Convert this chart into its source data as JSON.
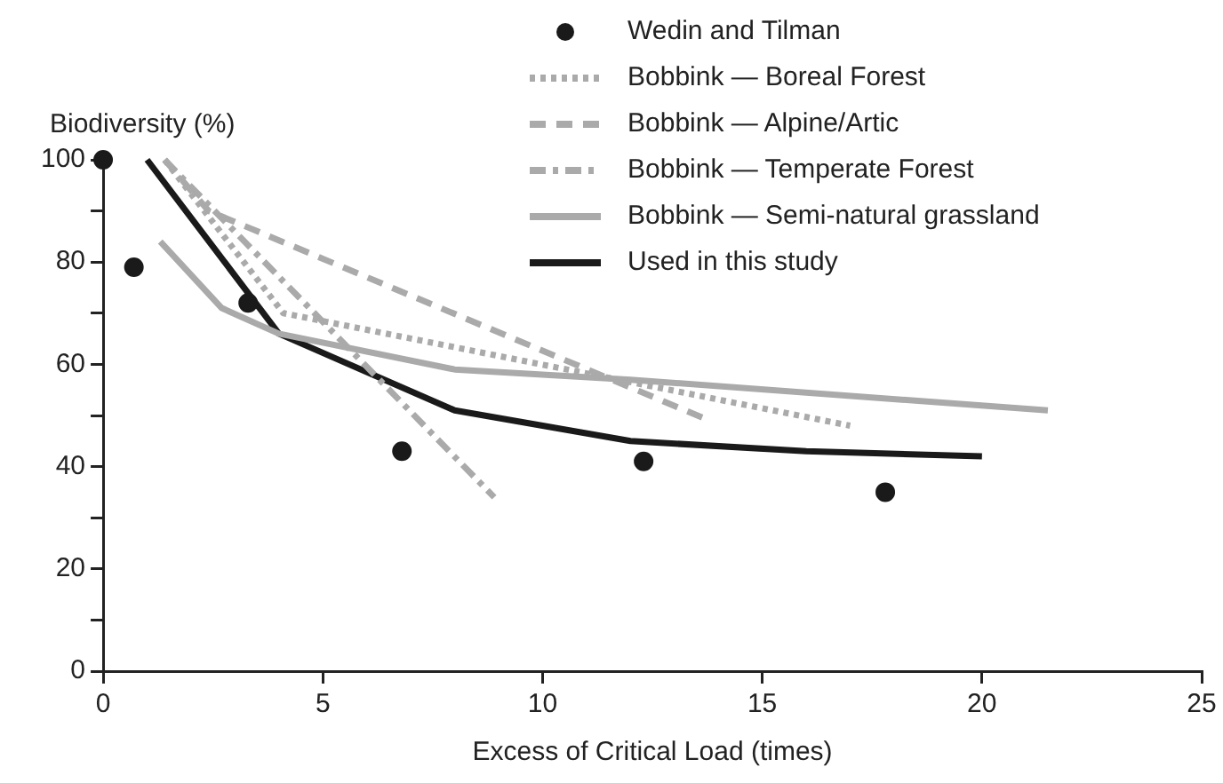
{
  "chart_data": {
    "type": "line",
    "xlabel": "Excess of Critical Load (times)",
    "ylabel": "Biodiversity (%)",
    "xlim": [
      0,
      25
    ],
    "xticks": [
      0,
      5,
      10,
      15,
      20,
      25
    ],
    "ylim": [
      0,
      100
    ],
    "yticks": [
      0,
      {
        "value": 10,
        "label": null
      },
      20,
      {
        "value": 30,
        "label": null
      },
      40,
      {
        "value": 50,
        "label": null
      },
      60,
      {
        "value": 70,
        "label": null
      },
      80,
      {
        "value": 90,
        "label": null
      },
      100
    ],
    "legend": "top right",
    "series": [
      {
        "name": "Wedin and Tilman",
        "type": "scatter",
        "color": "#1a1a1a",
        "marker": "circle",
        "x": [
          0,
          0.7,
          3.3,
          6.8,
          12.3,
          17.8
        ],
        "values": [
          100,
          79,
          72,
          43,
          41,
          35
        ]
      },
      {
        "name": "Bobbink — Boreal Forest",
        "color": "#aaaaaa",
        "line_style": "dotted",
        "marker": "none",
        "x": [
          1.4,
          4.1,
          17
        ],
        "values": [
          100,
          70,
          48
        ]
      },
      {
        "name": "Bobbink — Alpine/Artic",
        "color": "#aaaaaa",
        "line_style": "dashed",
        "marker": "none",
        "x": [
          1.4,
          2.4,
          13.8
        ],
        "values": [
          100,
          90,
          49
        ]
      },
      {
        "name": "Bobbink — Temperate Forest",
        "color": "#aaaaaa",
        "line_style": "dashdot",
        "marker": "none",
        "x": [
          1.4,
          8.9
        ],
        "values": [
          100,
          34
        ]
      },
      {
        "name": "Bobbink — Semi-natural grassland",
        "color": "#aaaaaa",
        "line_style": "solid",
        "marker": "none",
        "x": [
          1.3,
          2.7,
          4,
          8,
          12,
          21.5
        ],
        "values": [
          84,
          71,
          66,
          59,
          57,
          51
        ]
      },
      {
        "name": "Used in this study",
        "color": "#1a1a1a",
        "line_style": "solid",
        "marker": "none",
        "x": [
          1,
          4,
          8,
          12,
          16,
          20
        ],
        "values": [
          100,
          66,
          51,
          45,
          43,
          42
        ]
      }
    ]
  }
}
